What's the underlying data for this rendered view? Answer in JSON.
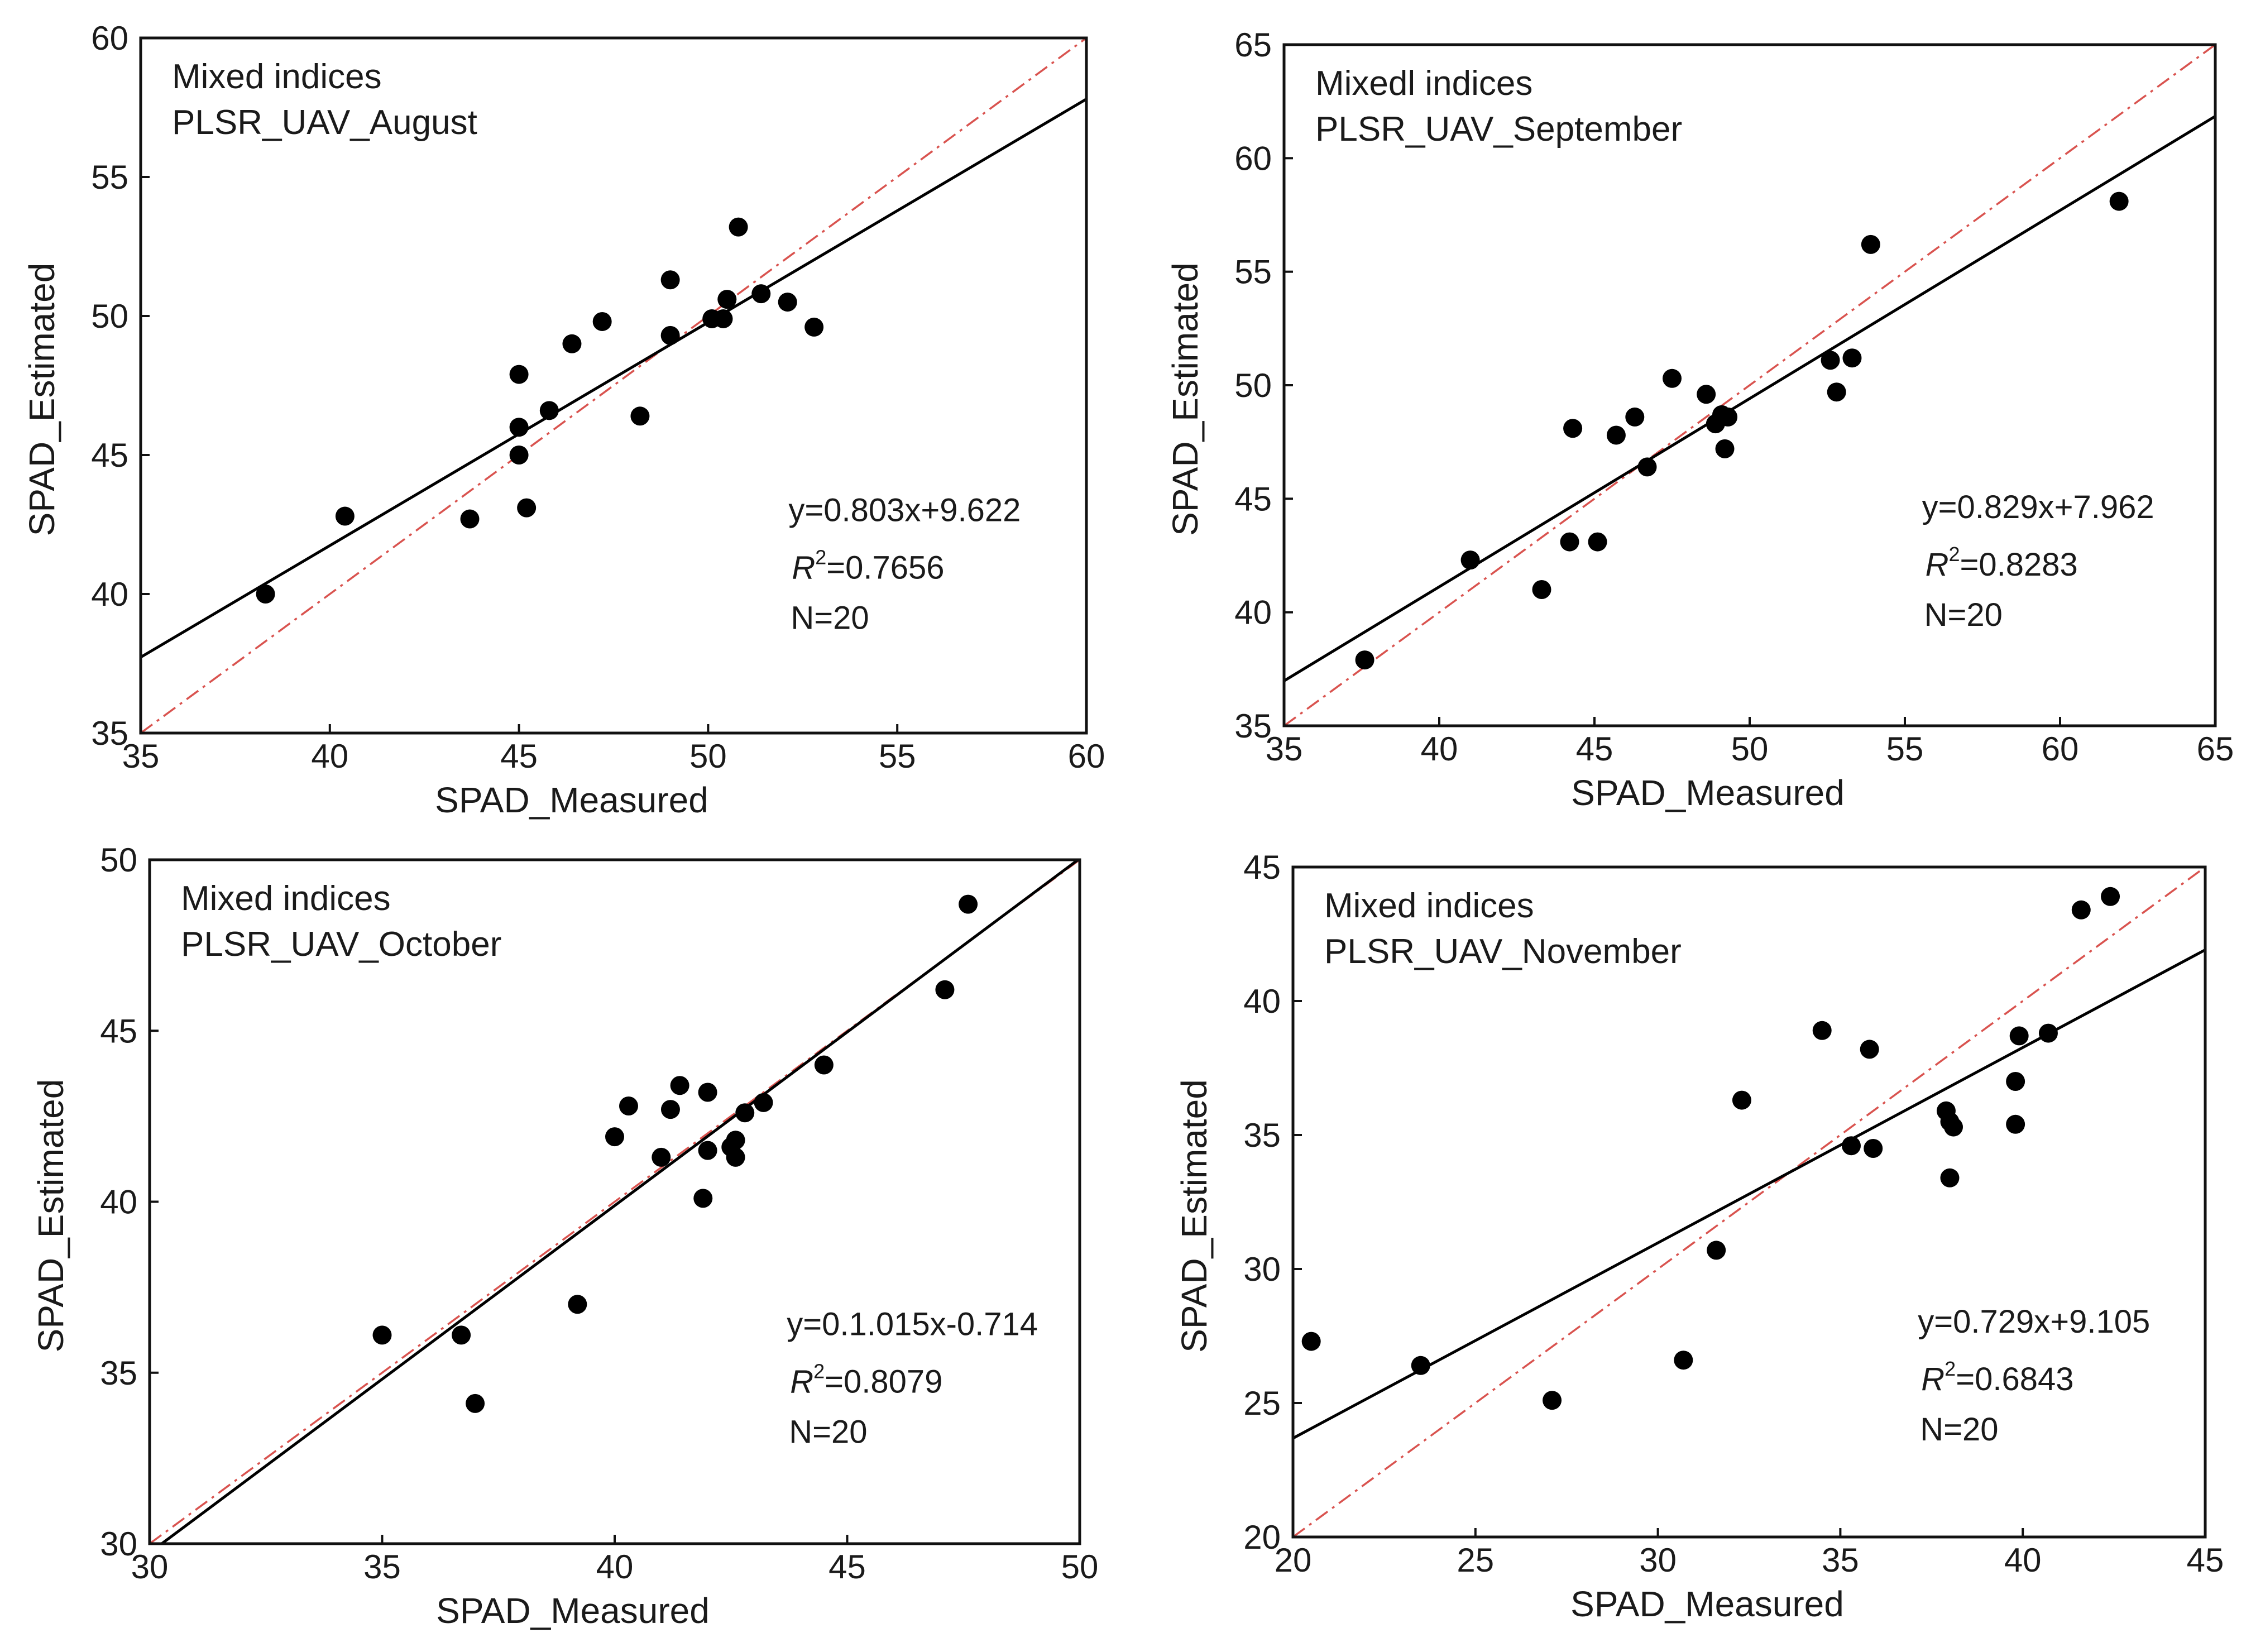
{
  "chart_data": [
    {
      "type": "scatter",
      "id": "august",
      "annotation": [
        "Mixed indices",
        "PLSR_UAV_August"
      ],
      "xlabel": "SPAD_Measured",
      "ylabel": "SPAD_Estimated",
      "xlim": [
        35,
        60
      ],
      "ylim": [
        35,
        60
      ],
      "xticks": [
        35,
        40,
        45,
        50,
        55,
        60
      ],
      "yticks": [
        35,
        40,
        45,
        50,
        55,
        60
      ],
      "fit": {
        "slope": 0.803,
        "intercept": 9.622
      },
      "stats": {
        "equation": "y=0.803x+9.622",
        "r2_symbol": "R",
        "r2_sup": "2",
        "r2_value": "=0.7656",
        "n": "N=20"
      },
      "points": [
        [
          38.3,
          40.0
        ],
        [
          40.4,
          42.8
        ],
        [
          43.7,
          42.7
        ],
        [
          45.0,
          47.9
        ],
        [
          45.0,
          46.0
        ],
        [
          45.0,
          45.0
        ],
        [
          45.2,
          43.1
        ],
        [
          45.8,
          46.6
        ],
        [
          46.4,
          49.0
        ],
        [
          47.2,
          49.8
        ],
        [
          48.2,
          46.4
        ],
        [
          49.0,
          51.3
        ],
        [
          49.0,
          49.3
        ],
        [
          50.1,
          49.9
        ],
        [
          50.4,
          49.9
        ],
        [
          50.5,
          50.6
        ],
        [
          50.8,
          53.2
        ],
        [
          51.4,
          50.8
        ],
        [
          52.1,
          50.5
        ],
        [
          52.8,
          49.6
        ]
      ]
    },
    {
      "type": "scatter",
      "id": "september",
      "annotation": [
        "Mixedl indices",
        "PLSR_UAV_September"
      ],
      "xlabel": "SPAD_Measured",
      "ylabel": "SPAD_Estimated",
      "xlim": [
        35,
        65
      ],
      "ylim": [
        35,
        65
      ],
      "xticks": [
        35,
        40,
        45,
        50,
        55,
        60,
        65
      ],
      "yticks": [
        35,
        40,
        45,
        50,
        55,
        60,
        65
      ],
      "fit": {
        "slope": 0.829,
        "intercept": 7.962
      },
      "stats": {
        "equation": "y=0.829x+7.962",
        "r2_symbol": "R",
        "r2_sup": "2",
        "r2_value": "=0.8283",
        "n": "N=20"
      },
      "points": [
        [
          37.6,
          37.9
        ],
        [
          41.0,
          42.3
        ],
        [
          43.3,
          41.0
        ],
        [
          44.2,
          43.1
        ],
        [
          44.3,
          48.1
        ],
        [
          45.1,
          43.1
        ],
        [
          45.7,
          47.8
        ],
        [
          46.3,
          48.6
        ],
        [
          46.7,
          46.4
        ],
        [
          47.5,
          50.3
        ],
        [
          48.6,
          49.6
        ],
        [
          48.9,
          48.3
        ],
        [
          49.1,
          48.7
        ],
        [
          49.2,
          47.2
        ],
        [
          49.3,
          48.6
        ],
        [
          52.6,
          51.1
        ],
        [
          52.8,
          49.7
        ],
        [
          53.3,
          51.2
        ],
        [
          53.9,
          56.2
        ],
        [
          61.9,
          58.1
        ]
      ]
    },
    {
      "type": "scatter",
      "id": "october",
      "annotation": [
        "Mixed indices",
        "PLSR_UAV_October"
      ],
      "xlabel": "SPAD_Measured",
      "ylabel": "SPAD_Estimated",
      "xlim": [
        30,
        50
      ],
      "ylim": [
        30,
        50
      ],
      "xticks": [
        30,
        35,
        40,
        45,
        50
      ],
      "yticks": [
        30,
        35,
        40,
        45,
        50
      ],
      "fit": {
        "slope": 1.015,
        "intercept": -0.714
      },
      "stats": {
        "equation": "y=0.1.015x-0.714",
        "r2_symbol": "R",
        "r2_sup": "2",
        "r2_value": "=0.8079",
        "n": "N=20"
      },
      "points": [
        [
          35.0,
          36.1
        ],
        [
          36.7,
          36.1
        ],
        [
          37.0,
          34.1
        ],
        [
          39.2,
          37.0
        ],
        [
          40.0,
          41.9
        ],
        [
          40.3,
          42.8
        ],
        [
          41.0,
          41.3
        ],
        [
          41.2,
          42.7
        ],
        [
          41.4,
          43.4
        ],
        [
          41.9,
          40.1
        ],
        [
          42.0,
          43.2
        ],
        [
          42.0,
          41.5
        ],
        [
          42.5,
          41.6
        ],
        [
          42.6,
          41.8
        ],
        [
          42.6,
          41.3
        ],
        [
          42.8,
          42.6
        ],
        [
          43.2,
          42.9
        ],
        [
          44.5,
          44.0
        ],
        [
          47.1,
          46.2
        ],
        [
          47.6,
          48.7
        ]
      ]
    },
    {
      "type": "scatter",
      "id": "november",
      "annotation": [
        "Mixed indices",
        "PLSR_UAV_November"
      ],
      "xlabel": "SPAD_Measured",
      "ylabel": "SPAD_Estimated",
      "xlim": [
        20,
        45
      ],
      "ylim": [
        20,
        45
      ],
      "xticks": [
        20,
        25,
        30,
        35,
        40,
        45
      ],
      "yticks": [
        20,
        25,
        30,
        35,
        40,
        45
      ],
      "fit": {
        "slope": 0.729,
        "intercept": 9.105
      },
      "stats": {
        "equation": "y=0.729x+9.105",
        "r2_symbol": "R",
        "r2_sup": "2",
        "r2_value": "=0.6843",
        "n": "N=20"
      },
      "points": [
        [
          20.5,
          27.3
        ],
        [
          23.5,
          26.4
        ],
        [
          27.1,
          25.1
        ],
        [
          30.7,
          26.6
        ],
        [
          31.6,
          30.7
        ],
        [
          32.3,
          36.3
        ],
        [
          34.5,
          38.9
        ],
        [
          35.3,
          34.6
        ],
        [
          35.8,
          38.2
        ],
        [
          35.9,
          34.5
        ],
        [
          37.9,
          35.9
        ],
        [
          38.0,
          33.4
        ],
        [
          38.1,
          35.3
        ],
        [
          39.8,
          37.0
        ],
        [
          39.8,
          35.4
        ],
        [
          39.9,
          38.7
        ],
        [
          40.7,
          38.8
        ],
        [
          41.6,
          43.4
        ],
        [
          42.4,
          43.9
        ],
        [
          38.0,
          35.5
        ]
      ]
    }
  ]
}
